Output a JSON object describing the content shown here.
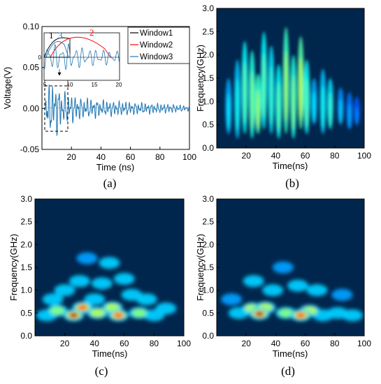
{
  "figure": {
    "captions": [
      "(a)",
      "(b)",
      "(c)",
      "(d)"
    ]
  },
  "chart_data": [
    {
      "panel": "(a)",
      "type": "line",
      "xlabel": "Time (ns)",
      "ylabel": "Voltage(V)",
      "xlim": [
        0,
        100
      ],
      "ylim": [
        -0.05,
        0.1
      ],
      "xticks": [
        "20",
        "40",
        "60",
        "80",
        "100"
      ],
      "yticks": [
        "-0.05",
        "0.00",
        "0.05",
        "0.10"
      ],
      "series": [
        {
          "name": "Window1",
          "color": "#000000"
        },
        {
          "name": "Window2",
          "color": "#ff0000"
        },
        {
          "name": "Window3",
          "color": "#1f77b4"
        }
      ],
      "signal": {
        "x": [
          2.0,
          3.5,
          4.5,
          5.5,
          6.5,
          7.5,
          8.5,
          9.5,
          10.5,
          11.5,
          12.5,
          13.5,
          15,
          17,
          19,
          21,
          23,
          25,
          27,
          30,
          33,
          36,
          40,
          45,
          50,
          55,
          60,
          70,
          80,
          90,
          100
        ],
        "y": [
          0.0,
          0.05,
          -0.02,
          0.04,
          -0.03,
          0.032,
          -0.028,
          0.035,
          -0.03,
          0.028,
          -0.025,
          0.022,
          -0.02,
          0.02,
          -0.015,
          0.018,
          -0.015,
          0.015,
          -0.012,
          0.013,
          -0.012,
          0.012,
          -0.01,
          0.01,
          -0.009,
          0.009,
          -0.008,
          0.007,
          -0.006,
          0.005,
          -0.003
        ]
      },
      "inset": {
        "xlim": [
          5,
          20
        ],
        "xticks": [
          "5",
          "10",
          "15",
          "20"
        ],
        "yticks": [
          "0"
        ],
        "labels": [
          "1",
          "3",
          "2"
        ]
      }
    },
    {
      "panel": "(b)",
      "type": "heatmap",
      "xlabel": "Time(ns)",
      "ylabel": "Frequency(GHz)",
      "xlim": [
        0,
        100
      ],
      "ylim": [
        0,
        3.0
      ],
      "xticks": [
        "20",
        "40",
        "60",
        "80",
        "100"
      ],
      "yticks": [
        "0.0",
        "0.5",
        "1.0",
        "1.5",
        "2.0",
        "2.5",
        "3.0"
      ],
      "colormap": "jet",
      "streaks": [
        {
          "t": 8,
          "f0": 0.3,
          "f1": 1.5,
          "v": 0.35
        },
        {
          "t": 14,
          "f0": 0.2,
          "f1": 1.9,
          "v": 0.4
        },
        {
          "t": 19,
          "f0": 0.3,
          "f1": 2.3,
          "v": 0.5
        },
        {
          "t": 24,
          "f0": 0.2,
          "f1": 2.1,
          "v": 0.55
        },
        {
          "t": 28,
          "f0": 0.3,
          "f1": 1.6,
          "v": 0.6
        },
        {
          "t": 32,
          "f0": 0.4,
          "f1": 2.5,
          "v": 0.5
        },
        {
          "t": 37,
          "f0": 0.3,
          "f1": 2.2,
          "v": 0.45
        },
        {
          "t": 42,
          "f0": 0.2,
          "f1": 1.8,
          "v": 0.5
        },
        {
          "t": 47,
          "f0": 0.3,
          "f1": 2.6,
          "v": 0.6
        },
        {
          "t": 52,
          "f0": 0.2,
          "f1": 2.0,
          "v": 0.55
        },
        {
          "t": 57,
          "f0": 0.4,
          "f1": 2.4,
          "v": 0.65
        },
        {
          "t": 61,
          "f0": 0.3,
          "f1": 1.9,
          "v": 0.5
        },
        {
          "t": 66,
          "f0": 0.5,
          "f1": 1.5,
          "v": 0.35
        },
        {
          "t": 72,
          "f0": 0.3,
          "f1": 1.7,
          "v": 0.4
        },
        {
          "t": 77,
          "f0": 0.4,
          "f1": 1.5,
          "v": 0.45
        },
        {
          "t": 84,
          "f0": 0.5,
          "f1": 1.3,
          "v": 0.3
        },
        {
          "t": 90,
          "f0": 0.4,
          "f1": 1.2,
          "v": 0.25
        },
        {
          "t": 95,
          "f0": 0.5,
          "f1": 1.1,
          "v": 0.2
        }
      ]
    },
    {
      "panel": "(c)",
      "type": "heatmap",
      "xlabel": "Time(ns)",
      "ylabel": "Frequency(GHz)",
      "xlim": [
        0,
        100
      ],
      "ylim": [
        0,
        3.0
      ],
      "xticks": [
        "20",
        "40",
        "60",
        "80",
        "100"
      ],
      "yticks": [
        "0.0",
        "0.5",
        "1.0",
        "1.5",
        "2.0",
        "2.5",
        "3.0"
      ],
      "colormap": "jet",
      "blobs": [
        {
          "t": 26,
          "f": 0.45,
          "v": 1.0
        },
        {
          "t": 32,
          "f": 0.62,
          "v": 0.75
        },
        {
          "t": 56,
          "f": 0.45,
          "v": 0.85
        },
        {
          "t": 52,
          "f": 0.62,
          "v": 0.6
        },
        {
          "t": 42,
          "f": 0.5,
          "v": 0.5
        },
        {
          "t": 15,
          "f": 0.55,
          "v": 0.45
        },
        {
          "t": 70,
          "f": 0.5,
          "v": 0.45
        },
        {
          "t": 80,
          "f": 0.45,
          "v": 0.35
        },
        {
          "t": 8,
          "f": 0.45,
          "v": 0.3
        },
        {
          "t": 30,
          "f": 1.2,
          "v": 0.35
        },
        {
          "t": 45,
          "f": 1.15,
          "v": 0.3
        },
        {
          "t": 60,
          "f": 1.25,
          "v": 0.3
        },
        {
          "t": 20,
          "f": 1.0,
          "v": 0.3
        },
        {
          "t": 50,
          "f": 1.6,
          "v": 0.25
        },
        {
          "t": 35,
          "f": 1.7,
          "v": 0.2
        },
        {
          "t": 65,
          "f": 0.9,
          "v": 0.3
        },
        {
          "t": 88,
          "f": 0.6,
          "v": 0.25
        },
        {
          "t": 12,
          "f": 0.8,
          "v": 0.25
        },
        {
          "t": 40,
          "f": 0.8,
          "v": 0.35
        },
        {
          "t": 75,
          "f": 0.8,
          "v": 0.25
        }
      ]
    },
    {
      "panel": "(d)",
      "type": "heatmap",
      "xlabel": "Time(ns)",
      "ylabel": "Frequency(GHz)",
      "xlim": [
        0,
        100
      ],
      "ylim": [
        0,
        3.0
      ],
      "xticks": [
        "20",
        "40",
        "60",
        "80",
        "100"
      ],
      "yticks": [
        "0.0",
        "0.5",
        "1.0",
        "1.5",
        "2.0",
        "2.5",
        "3.0"
      ],
      "colormap": "jet",
      "blobs": [
        {
          "t": 29,
          "f": 0.48,
          "v": 1.0
        },
        {
          "t": 57,
          "f": 0.45,
          "v": 0.8
        },
        {
          "t": 33,
          "f": 0.62,
          "v": 0.6
        },
        {
          "t": 24,
          "f": 0.6,
          "v": 0.5
        },
        {
          "t": 47,
          "f": 0.5,
          "v": 0.45
        },
        {
          "t": 63,
          "f": 0.55,
          "v": 0.5
        },
        {
          "t": 15,
          "f": 0.5,
          "v": 0.4
        },
        {
          "t": 72,
          "f": 0.45,
          "v": 0.35
        },
        {
          "t": 82,
          "f": 0.5,
          "v": 0.3
        },
        {
          "t": 92,
          "f": 0.45,
          "v": 0.25
        },
        {
          "t": 38,
          "f": 1.0,
          "v": 0.3
        },
        {
          "t": 55,
          "f": 1.1,
          "v": 0.3
        },
        {
          "t": 25,
          "f": 1.2,
          "v": 0.25
        },
        {
          "t": 68,
          "f": 1.0,
          "v": 0.25
        },
        {
          "t": 45,
          "f": 1.5,
          "v": 0.2
        },
        {
          "t": 10,
          "f": 0.8,
          "v": 0.2
        },
        {
          "t": 85,
          "f": 0.9,
          "v": 0.2
        }
      ]
    }
  ]
}
